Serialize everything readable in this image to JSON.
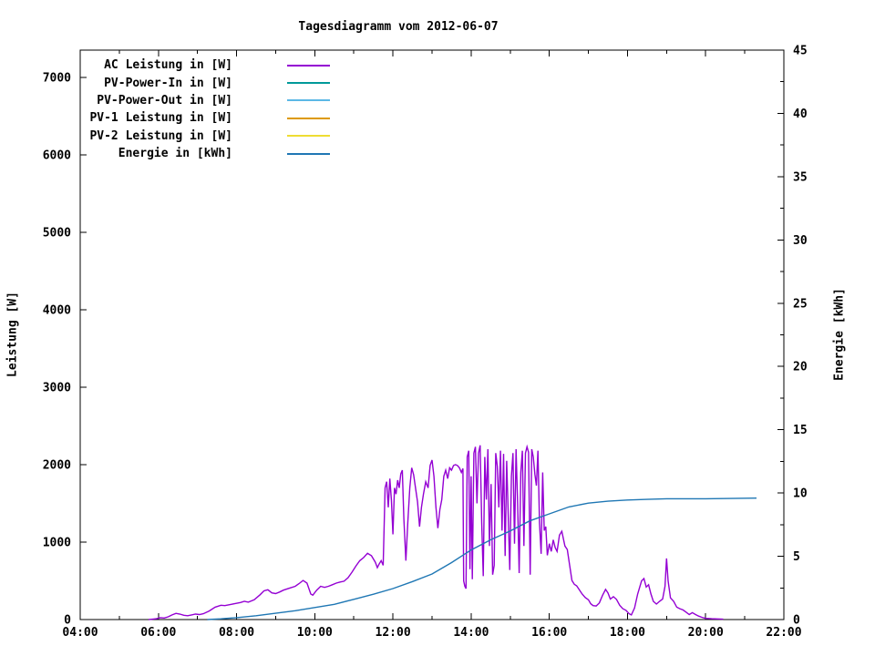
{
  "title": "Tagesdiagramm vom 2012-06-07",
  "axes": {
    "left_label": "Leistung [W]",
    "right_label": "Energie [kWh]",
    "left_ticks": [
      0,
      1000,
      2000,
      3000,
      4000,
      5000,
      6000,
      7000
    ],
    "right_ticks": [
      0,
      5,
      10,
      15,
      20,
      25,
      30,
      35,
      40,
      45
    ],
    "right_minor_step": 2.5,
    "x_tick_labels": [
      "04:00",
      "06:00",
      "08:00",
      "10:00",
      "12:00",
      "14:00",
      "16:00",
      "18:00",
      "20:00",
      "22:00"
    ],
    "x_minor_step_hours": 1,
    "x_range_hours": [
      4,
      22
    ],
    "left_range": [
      0,
      7352
    ],
    "right_range": [
      0,
      45
    ]
  },
  "legend": {
    "items": [
      {
        "label": "AC Leistung in [W]",
        "color": "#9400d3"
      },
      {
        "label": "PV-Power-In in [W]",
        "color": "#009999"
      },
      {
        "label": "PV-Power-Out in [W]",
        "color": "#5cb8e6"
      },
      {
        "label": "PV-1 Leistung in [W]",
        "color": "#dd9900"
      },
      {
        "label": "PV-2 Leistung in [W]",
        "color": "#eedd33"
      },
      {
        "label": "Energie in [kWh]",
        "color": "#1f77b4"
      }
    ]
  },
  "chart_data": {
    "type": "line",
    "title": "Tagesdiagramm vom 2012-06-07",
    "xlabel": "",
    "ylabel": "Leistung [W]",
    "y2label": "Energie [kWh]",
    "x_unit": "hour-of-day",
    "xlim": [
      4,
      22
    ],
    "ylim": [
      0,
      7352
    ],
    "y2lim": [
      0,
      45
    ],
    "grid": false,
    "legend_position": "top-left-inside",
    "series": [
      {
        "name": "AC Leistung in [W]",
        "color": "#9400d3",
        "axis": "left",
        "unit": "W",
        "visible": true,
        "points": [
          [
            5.75,
            0
          ],
          [
            5.85,
            5
          ],
          [
            5.95,
            10
          ],
          [
            6.05,
            25
          ],
          [
            6.15,
            20
          ],
          [
            6.25,
            35
          ],
          [
            6.35,
            60
          ],
          [
            6.45,
            80
          ],
          [
            6.55,
            70
          ],
          [
            6.65,
            55
          ],
          [
            6.75,
            50
          ],
          [
            6.85,
            60
          ],
          [
            6.95,
            70
          ],
          [
            7.05,
            65
          ],
          [
            7.15,
            75
          ],
          [
            7.3,
            110
          ],
          [
            7.45,
            160
          ],
          [
            7.6,
            185
          ],
          [
            7.7,
            180
          ],
          [
            7.85,
            195
          ],
          [
            7.95,
            205
          ],
          [
            8.1,
            220
          ],
          [
            8.2,
            235
          ],
          [
            8.3,
            225
          ],
          [
            8.45,
            255
          ],
          [
            8.6,
            320
          ],
          [
            8.7,
            370
          ],
          [
            8.8,
            385
          ],
          [
            8.9,
            345
          ],
          [
            9.0,
            335
          ],
          [
            9.1,
            355
          ],
          [
            9.2,
            380
          ],
          [
            9.35,
            405
          ],
          [
            9.5,
            430
          ],
          [
            9.6,
            465
          ],
          [
            9.7,
            505
          ],
          [
            9.8,
            470
          ],
          [
            9.9,
            330
          ],
          [
            9.95,
            315
          ],
          [
            10.05,
            380
          ],
          [
            10.15,
            430
          ],
          [
            10.25,
            415
          ],
          [
            10.35,
            430
          ],
          [
            10.45,
            450
          ],
          [
            10.55,
            470
          ],
          [
            10.65,
            485
          ],
          [
            10.75,
            495
          ],
          [
            10.85,
            540
          ],
          [
            10.95,
            610
          ],
          [
            11.05,
            690
          ],
          [
            11.15,
            760
          ],
          [
            11.25,
            800
          ],
          [
            11.35,
            855
          ],
          [
            11.45,
            825
          ],
          [
            11.55,
            740
          ],
          [
            11.6,
            670
          ],
          [
            11.65,
            720
          ],
          [
            11.7,
            760
          ],
          [
            11.75,
            700
          ],
          [
            11.8,
            1700
          ],
          [
            11.84,
            1780
          ],
          [
            11.88,
            1450
          ],
          [
            11.92,
            1820
          ],
          [
            11.96,
            1550
          ],
          [
            12.0,
            1100
          ],
          [
            12.04,
            1700
          ],
          [
            12.08,
            1620
          ],
          [
            12.12,
            1800
          ],
          [
            12.16,
            1700
          ],
          [
            12.2,
            1880
          ],
          [
            12.24,
            1930
          ],
          [
            12.28,
            1300
          ],
          [
            12.33,
            760
          ],
          [
            12.38,
            1250
          ],
          [
            12.43,
            1700
          ],
          [
            12.48,
            1960
          ],
          [
            12.53,
            1870
          ],
          [
            12.58,
            1690
          ],
          [
            12.63,
            1520
          ],
          [
            12.68,
            1200
          ],
          [
            12.73,
            1450
          ],
          [
            12.78,
            1620
          ],
          [
            12.84,
            1780
          ],
          [
            12.9,
            1700
          ],
          [
            12.95,
            1990
          ],
          [
            13.0,
            2060
          ],
          [
            13.05,
            1850
          ],
          [
            13.1,
            1450
          ],
          [
            13.15,
            1180
          ],
          [
            13.2,
            1420
          ],
          [
            13.25,
            1550
          ],
          [
            13.3,
            1850
          ],
          [
            13.35,
            1930
          ],
          [
            13.4,
            1820
          ],
          [
            13.45,
            1960
          ],
          [
            13.5,
            1930
          ],
          [
            13.55,
            1990
          ],
          [
            13.6,
            2000
          ],
          [
            13.65,
            1990
          ],
          [
            13.7,
            1960
          ],
          [
            13.75,
            1900
          ],
          [
            13.79,
            1950
          ],
          [
            13.81,
            500
          ],
          [
            13.84,
            430
          ],
          [
            13.87,
            400
          ],
          [
            13.9,
            2100
          ],
          [
            13.94,
            2180
          ],
          [
            13.97,
            650
          ],
          [
            14.0,
            1850
          ],
          [
            14.03,
            520
          ],
          [
            14.07,
            2150
          ],
          [
            14.11,
            2230
          ],
          [
            14.15,
            1500
          ],
          [
            14.19,
            2150
          ],
          [
            14.23,
            2250
          ],
          [
            14.27,
            1250
          ],
          [
            14.31,
            560
          ],
          [
            14.35,
            2100
          ],
          [
            14.39,
            1550
          ],
          [
            14.43,
            2200
          ],
          [
            14.47,
            950
          ],
          [
            14.51,
            1750
          ],
          [
            14.55,
            580
          ],
          [
            14.59,
            700
          ],
          [
            14.63,
            2150
          ],
          [
            14.67,
            1980
          ],
          [
            14.71,
            1450
          ],
          [
            14.75,
            2180
          ],
          [
            14.79,
            1150
          ],
          [
            14.83,
            2140
          ],
          [
            14.87,
            820
          ],
          [
            14.91,
            2050
          ],
          [
            14.95,
            1350
          ],
          [
            14.99,
            640
          ],
          [
            15.03,
            1850
          ],
          [
            15.07,
            2150
          ],
          [
            15.11,
            980
          ],
          [
            15.15,
            2200
          ],
          [
            15.19,
            1500
          ],
          [
            15.23,
            600
          ],
          [
            15.27,
            1900
          ],
          [
            15.31,
            2180
          ],
          [
            15.35,
            950
          ],
          [
            15.39,
            2150
          ],
          [
            15.43,
            2230
          ],
          [
            15.47,
            2160
          ],
          [
            15.51,
            580
          ],
          [
            15.55,
            2200
          ],
          [
            15.59,
            2100
          ],
          [
            15.63,
            1880
          ],
          [
            15.67,
            1730
          ],
          [
            15.71,
            2180
          ],
          [
            15.75,
            1250
          ],
          [
            15.79,
            850
          ],
          [
            15.83,
            1900
          ],
          [
            15.87,
            1150
          ],
          [
            15.91,
            1200
          ],
          [
            15.95,
            830
          ],
          [
            16.0,
            980
          ],
          [
            16.05,
            880
          ],
          [
            16.1,
            1030
          ],
          [
            16.15,
            930
          ],
          [
            16.2,
            880
          ],
          [
            16.26,
            1090
          ],
          [
            16.32,
            1140
          ],
          [
            16.4,
            950
          ],
          [
            16.46,
            905
          ],
          [
            16.52,
            700
          ],
          [
            16.58,
            505
          ],
          [
            16.64,
            455
          ],
          [
            16.7,
            435
          ],
          [
            16.76,
            390
          ],
          [
            16.84,
            330
          ],
          [
            16.92,
            285
          ],
          [
            17.0,
            255
          ],
          [
            17.06,
            205
          ],
          [
            17.12,
            180
          ],
          [
            17.2,
            175
          ],
          [
            17.28,
            215
          ],
          [
            17.36,
            310
          ],
          [
            17.44,
            390
          ],
          [
            17.5,
            345
          ],
          [
            17.56,
            265
          ],
          [
            17.64,
            295
          ],
          [
            17.72,
            260
          ],
          [
            17.8,
            185
          ],
          [
            17.88,
            140
          ],
          [
            17.96,
            120
          ],
          [
            18.04,
            75
          ],
          [
            18.1,
            60
          ],
          [
            18.18,
            150
          ],
          [
            18.26,
            330
          ],
          [
            18.36,
            500
          ],
          [
            18.42,
            530
          ],
          [
            18.48,
            420
          ],
          [
            18.54,
            450
          ],
          [
            18.6,
            330
          ],
          [
            18.66,
            235
          ],
          [
            18.74,
            200
          ],
          [
            18.82,
            235
          ],
          [
            18.9,
            265
          ],
          [
            18.96,
            430
          ],
          [
            19.0,
            790
          ],
          [
            19.04,
            500
          ],
          [
            19.1,
            280
          ],
          [
            19.18,
            235
          ],
          [
            19.26,
            160
          ],
          [
            19.34,
            140
          ],
          [
            19.42,
            125
          ],
          [
            19.5,
            95
          ],
          [
            19.58,
            65
          ],
          [
            19.66,
            90
          ],
          [
            19.74,
            65
          ],
          [
            19.82,
            45
          ],
          [
            19.9,
            30
          ],
          [
            20.0,
            15
          ],
          [
            20.15,
            10
          ],
          [
            20.3,
            8
          ],
          [
            20.45,
            5
          ]
        ]
      },
      {
        "name": "PV-Power-In in [W]",
        "color": "#009999",
        "axis": "left",
        "unit": "W",
        "visible": false,
        "points": []
      },
      {
        "name": "PV-Power-Out in [W]",
        "color": "#5cb8e6",
        "axis": "left",
        "unit": "W",
        "visible": false,
        "points": []
      },
      {
        "name": "PV-1 Leistung in [W]",
        "color": "#dd9900",
        "axis": "left",
        "unit": "W",
        "visible": false,
        "points": []
      },
      {
        "name": "PV-2 Leistung in [W]",
        "color": "#eedd33",
        "axis": "left",
        "unit": "W",
        "visible": false,
        "points": []
      },
      {
        "name": "Energie in [kWh]",
        "color": "#1f77b4",
        "axis": "right",
        "unit": "kWh",
        "visible": true,
        "points": [
          [
            7.25,
            0
          ],
          [
            7.6,
            0.06
          ],
          [
            8.0,
            0.15
          ],
          [
            8.5,
            0.3
          ],
          [
            9.0,
            0.5
          ],
          [
            9.5,
            0.7
          ],
          [
            10.0,
            0.95
          ],
          [
            10.5,
            1.2
          ],
          [
            11.0,
            1.6
          ],
          [
            11.5,
            2.0
          ],
          [
            12.0,
            2.45
          ],
          [
            12.5,
            3.0
          ],
          [
            13.0,
            3.6
          ],
          [
            13.5,
            4.5
          ],
          [
            14.0,
            5.5
          ],
          [
            14.5,
            6.3
          ],
          [
            15.0,
            7.0
          ],
          [
            15.5,
            7.8
          ],
          [
            16.0,
            8.35
          ],
          [
            16.5,
            8.9
          ],
          [
            17.0,
            9.2
          ],
          [
            17.5,
            9.35
          ],
          [
            18.0,
            9.45
          ],
          [
            18.5,
            9.5
          ],
          [
            19.0,
            9.55
          ],
          [
            20.0,
            9.55
          ],
          [
            21.3,
            9.6
          ]
        ]
      }
    ]
  }
}
